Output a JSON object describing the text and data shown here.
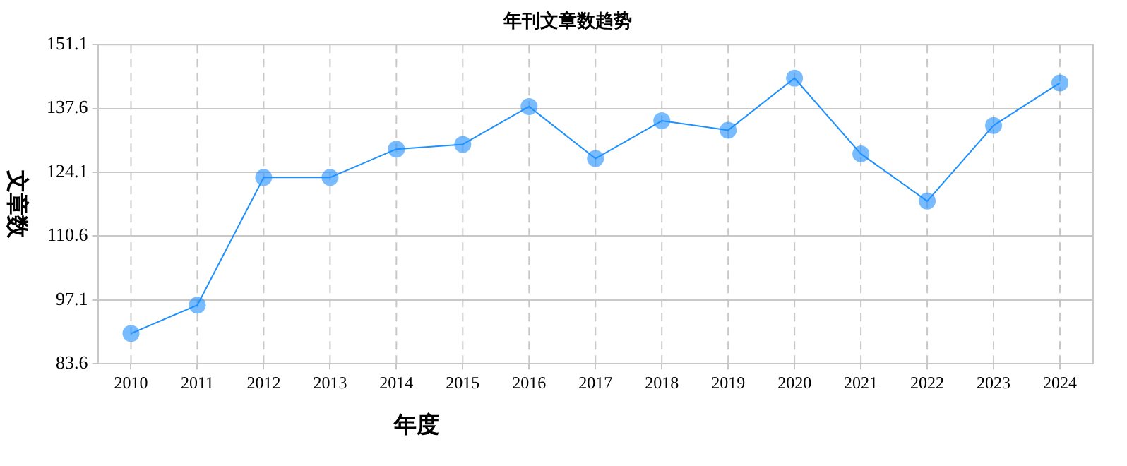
{
  "chart_data": {
    "type": "line",
    "title": "年刊文章数趋势",
    "xlabel": "年度",
    "ylabel": "文章数",
    "categories": [
      "2010",
      "2011",
      "2012",
      "2013",
      "2014",
      "2015",
      "2016",
      "2017",
      "2018",
      "2019",
      "2020",
      "2021",
      "2022",
      "2023",
      "2024"
    ],
    "series": [
      {
        "color": "#1e90ff",
        "values": [
          90,
          96,
          123,
          123,
          129,
          130,
          138,
          127,
          135,
          133,
          144,
          128,
          118,
          134,
          143
        ]
      }
    ],
    "ylim": [
      83.6,
      151.1
    ],
    "yticks": [
      {
        "value": 83.6,
        "label": "83.6"
      },
      {
        "value": 97.1,
        "label": "97.1"
      },
      {
        "value": 110.6,
        "label": "110.6"
      },
      {
        "value": 124.1,
        "label": "124.1"
      },
      {
        "value": 137.6,
        "label": "137.6"
      },
      {
        "value": 151.1,
        "label": "151.1"
      }
    ],
    "grid": true,
    "legend": false,
    "marker": "circle",
    "line_style": "solid"
  }
}
